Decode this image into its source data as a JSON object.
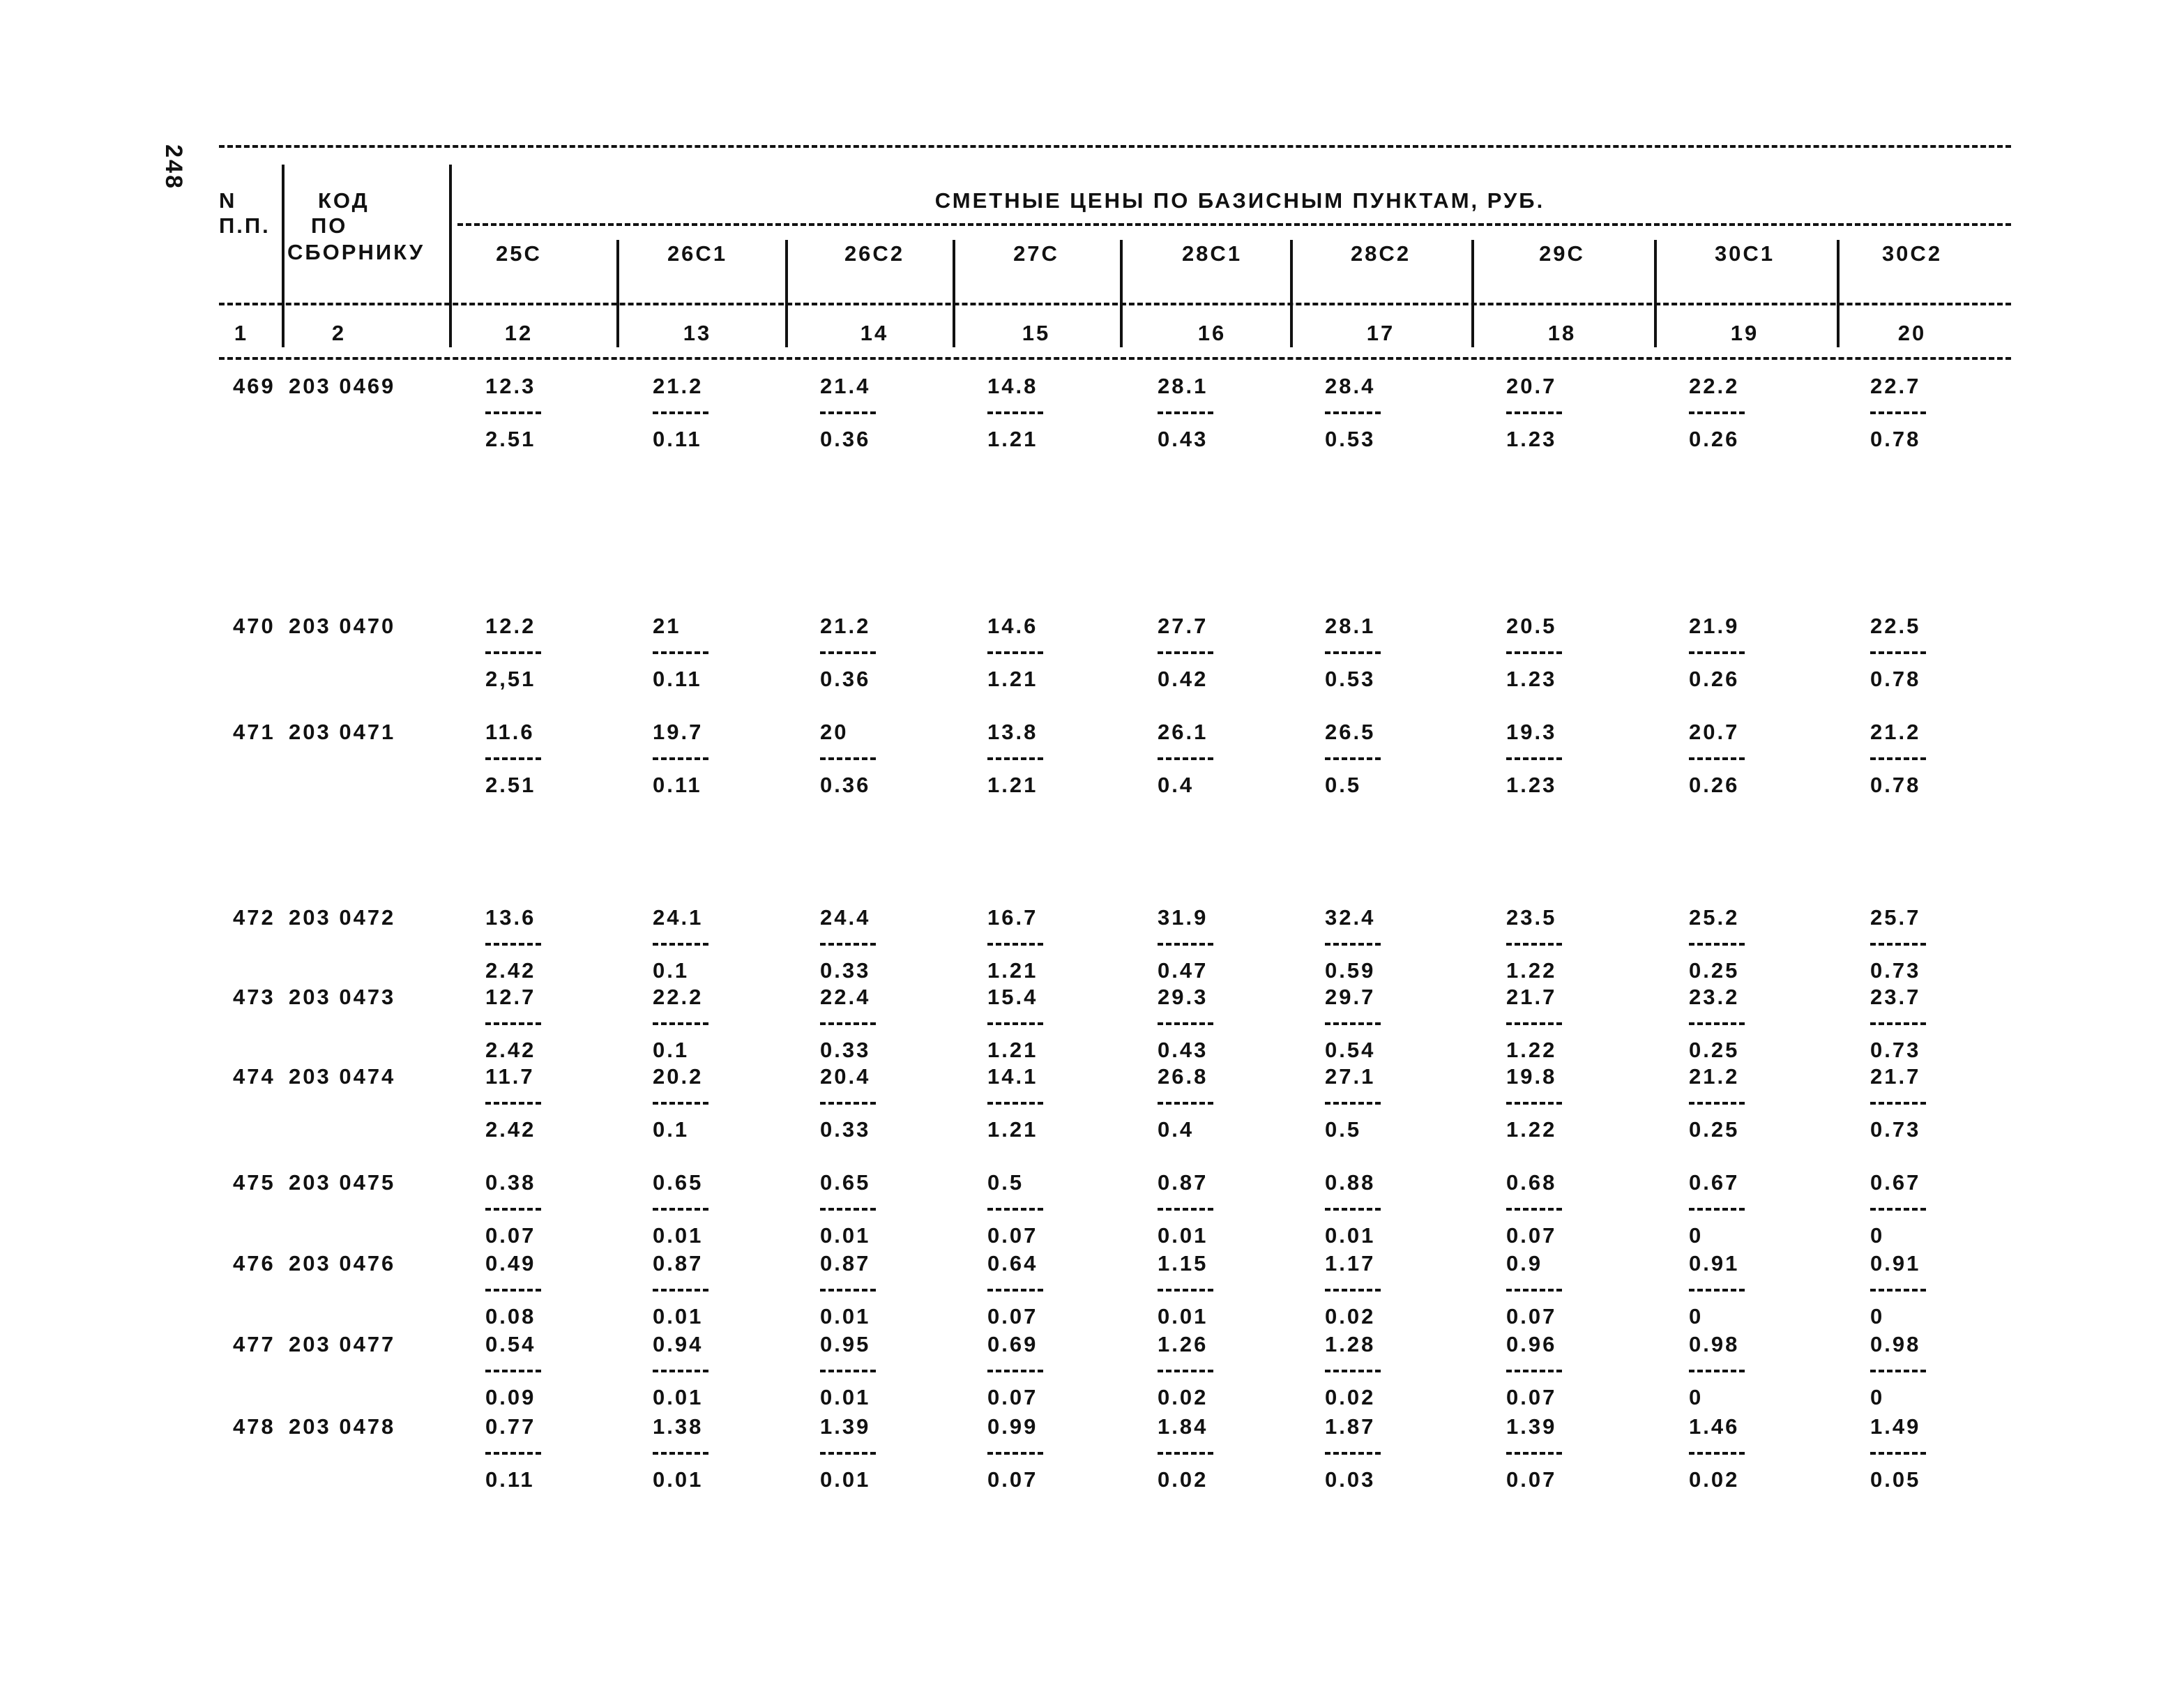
{
  "page_number": "248",
  "header": {
    "n_label": [
      "N",
      "П.П."
    ],
    "code_label": [
      "КОД",
      "ПО",
      "СБОРНИКУ"
    ],
    "title": "СМЕТНЫЕ ЦЕНЫ ПО БАЗИСНЫМ ПУНКТАМ, РУБ.",
    "columns": [
      "25С",
      "26С1",
      "26С2",
      "27С",
      "28С1",
      "28С2",
      "29С",
      "30С1",
      "30С2"
    ],
    "column_numbers": [
      "1",
      "2",
      "12",
      "13",
      "14",
      "15",
      "16",
      "17",
      "18",
      "19",
      "20"
    ]
  },
  "rows": [
    {
      "n": "469",
      "code": "203 0469",
      "top": [
        "12.3",
        "21.2",
        "21.4",
        "14.8",
        "28.1",
        "28.4",
        "20.7",
        "22.2",
        "22.7"
      ],
      "bottom": [
        "2.51",
        "0.11",
        "0.36",
        "1.21",
        "0.43",
        "0.53",
        "1.23",
        "0.26",
        "0.78"
      ]
    },
    {
      "n": "470",
      "code": "203 0470",
      "top": [
        "12.2",
        "21",
        "21.2",
        "14.6",
        "27.7",
        "28.1",
        "20.5",
        "21.9",
        "22.5"
      ],
      "bottom": [
        "2,51",
        "0.11",
        "0.36",
        "1.21",
        "0.42",
        "0.53",
        "1.23",
        "0.26",
        "0.78"
      ]
    },
    {
      "n": "471",
      "code": "203 0471",
      "top": [
        "11.6",
        "19.7",
        "20",
        "13.8",
        "26.1",
        "26.5",
        "19.3",
        "20.7",
        "21.2"
      ],
      "bottom": [
        "2.51",
        "0.11",
        "0.36",
        "1.21",
        "0.4",
        "0.5",
        "1.23",
        "0.26",
        "0.78"
      ]
    },
    {
      "n": "472",
      "code": "203 0472",
      "top": [
        "13.6",
        "24.1",
        "24.4",
        "16.7",
        "31.9",
        "32.4",
        "23.5",
        "25.2",
        "25.7"
      ],
      "bottom": [
        "2.42",
        "0.1",
        "0.33",
        "1.21",
        "0.47",
        "0.59",
        "1.22",
        "0.25",
        "0.73"
      ]
    },
    {
      "n": "473",
      "code": "203 0473",
      "top": [
        "12.7",
        "22.2",
        "22.4",
        "15.4",
        "29.3",
        "29.7",
        "21.7",
        "23.2",
        "23.7"
      ],
      "bottom": [
        "2.42",
        "0.1",
        "0.33",
        "1.21",
        "0.43",
        "0.54",
        "1.22",
        "0.25",
        "0.73"
      ]
    },
    {
      "n": "474",
      "code": "203 0474",
      "top": [
        "11.7",
        "20.2",
        "20.4",
        "14.1",
        "26.8",
        "27.1",
        "19.8",
        "21.2",
        "21.7"
      ],
      "bottom": [
        "2.42",
        "0.1",
        "0.33",
        "1.21",
        "0.4",
        "0.5",
        "1.22",
        "0.25",
        "0.73"
      ]
    },
    {
      "n": "475",
      "code": "203 0475",
      "top": [
        "0.38",
        "0.65",
        "0.65",
        "0.5",
        "0.87",
        "0.88",
        "0.68",
        "0.67",
        "0.67"
      ],
      "bottom": [
        "0.07",
        "0.01",
        "0.01",
        "0.07",
        "0.01",
        "0.01",
        "0.07",
        "0",
        "0"
      ]
    },
    {
      "n": "476",
      "code": "203 0476",
      "top": [
        "0.49",
        "0.87",
        "0.87",
        "0.64",
        "1.15",
        "1.17",
        "0.9",
        "0.91",
        "0.91"
      ],
      "bottom": [
        "0.08",
        "0.01",
        "0.01",
        "0.07",
        "0.01",
        "0.02",
        "0.07",
        "0",
        "0"
      ]
    },
    {
      "n": "477",
      "code": "203 0477",
      "top": [
        "0.54",
        "0.94",
        "0.95",
        "0.69",
        "1.26",
        "1.28",
        "0.96",
        "0.98",
        "0.98"
      ],
      "bottom": [
        "0.09",
        "0.01",
        "0.01",
        "0.07",
        "0.02",
        "0.02",
        "0.07",
        "0",
        "0"
      ]
    },
    {
      "n": "478",
      "code": "203 0478",
      "top": [
        "0.77",
        "1.38",
        "1.39",
        "0.99",
        "1.84",
        "1.87",
        "1.39",
        "1.46",
        "1.49"
      ],
      "bottom": [
        "0.11",
        "0.01",
        "0.01",
        "0.07",
        "0.02",
        "0.03",
        "0.07",
        "0.02",
        "0.05"
      ]
    }
  ]
}
